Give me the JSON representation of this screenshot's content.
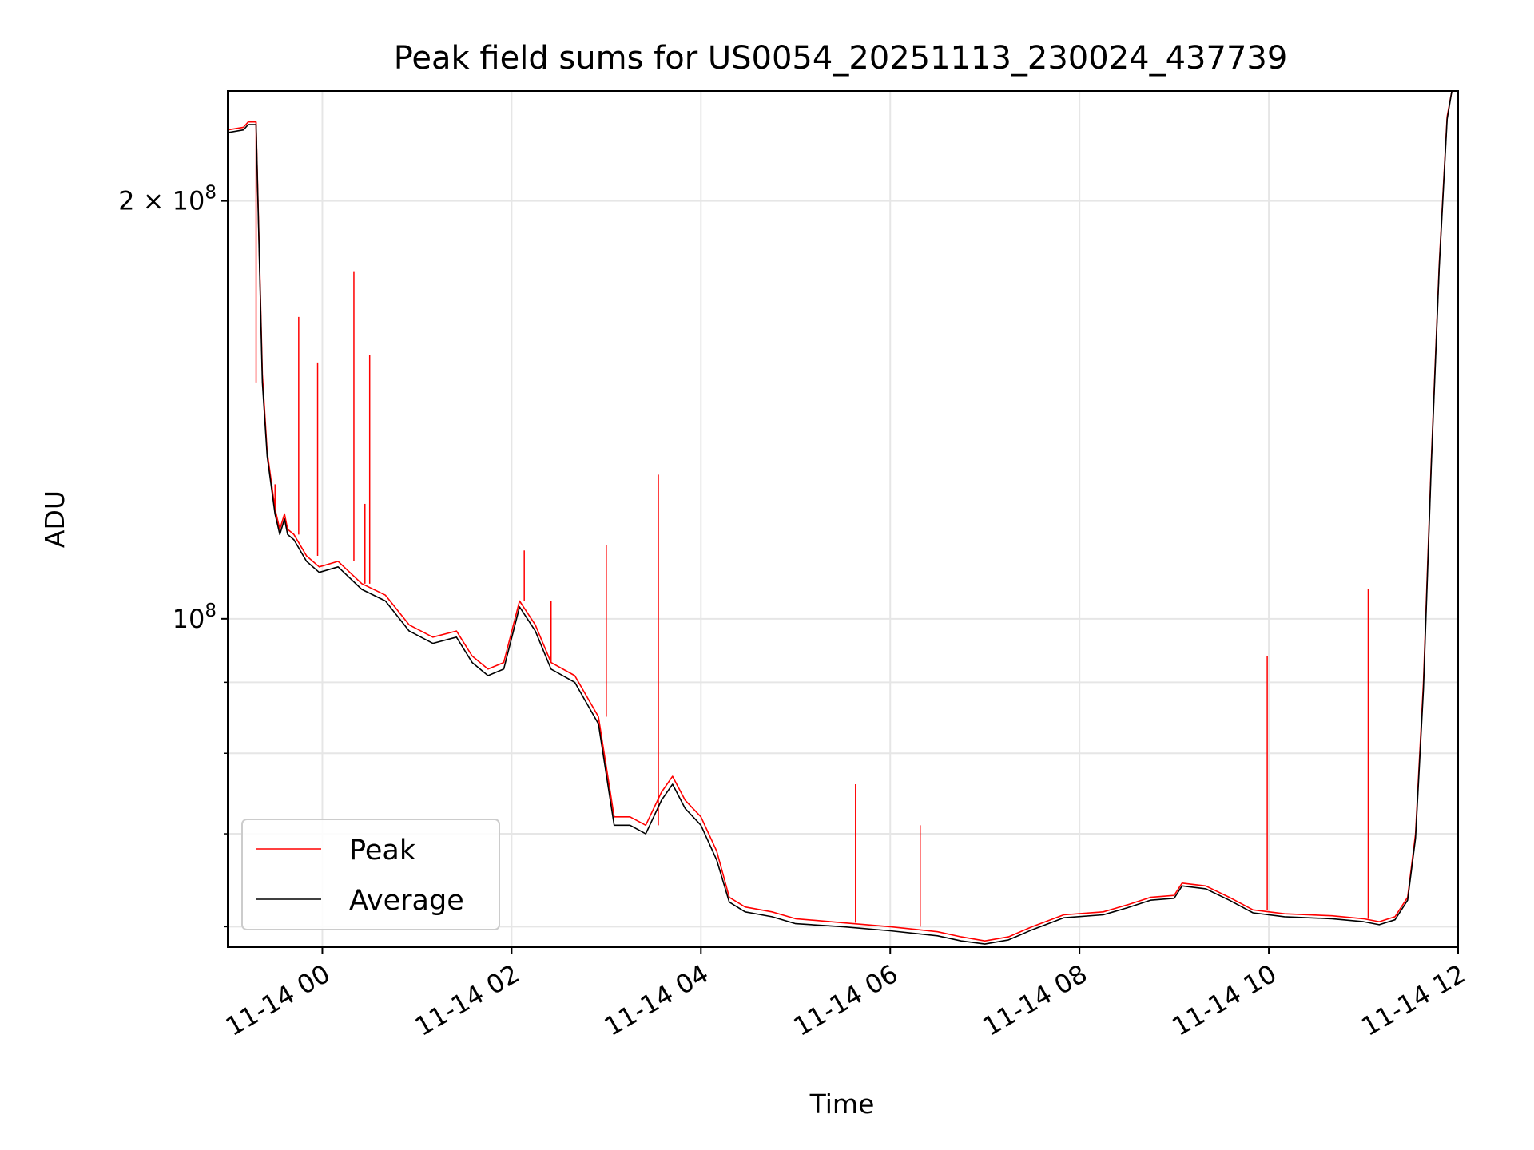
{
  "chart_data": {
    "type": "line",
    "title": "Peak field sums for US0054_20251113_230024_437739",
    "xlabel": "Time",
    "ylabel": "ADU",
    "yscale": "log",
    "xlim": [
      "2025-11-13T23:00",
      "2025-11-14T12:00"
    ],
    "ylim": [
      58000000,
      240000000
    ],
    "x_ticks": [
      {
        "value": "2025-11-14T00:00",
        "label": "11-14 00"
      },
      {
        "value": "2025-11-14T02:00",
        "label": "11-14 02"
      },
      {
        "value": "2025-11-14T04:00",
        "label": "11-14 04"
      },
      {
        "value": "2025-11-14T06:00",
        "label": "11-14 06"
      },
      {
        "value": "2025-11-14T08:00",
        "label": "11-14 08"
      },
      {
        "value": "2025-11-14T10:00",
        "label": "11-14 10"
      },
      {
        "value": "2025-11-14T12:00",
        "label": "11-14 12"
      }
    ],
    "y_ticks": [
      {
        "value": 200000000,
        "label_mantissa": "2",
        "label_base": "10",
        "label_exp": "8"
      },
      {
        "value": 100000000,
        "label_mantissa": "",
        "label_base": "10",
        "label_exp": "8"
      }
    ],
    "y_minor_ticks": [
      60000000,
      70000000,
      80000000,
      90000000
    ],
    "grid": true,
    "legend_position": "lower-left",
    "x": [
      "2025-11-13T23:00",
      "2025-11-13T23:10",
      "2025-11-13T23:13",
      "2025-11-13T23:18",
      "2025-11-13T23:22",
      "2025-11-13T23:25",
      "2025-11-13T23:30",
      "2025-11-13T23:33",
      "2025-11-13T23:36",
      "2025-11-13T23:38",
      "2025-11-13T23:42",
      "2025-11-13T23:50",
      "2025-11-13T23:58",
      "2025-11-14T00:10",
      "2025-11-14T00:25",
      "2025-11-14T00:40",
      "2025-11-14T00:55",
      "2025-11-14T01:10",
      "2025-11-14T01:25",
      "2025-11-14T01:35",
      "2025-11-14T01:45",
      "2025-11-14T01:55",
      "2025-11-14T02:05",
      "2025-11-14T02:15",
      "2025-11-14T02:25",
      "2025-11-14T02:40",
      "2025-11-14T02:55",
      "2025-11-14T03:05",
      "2025-11-14T03:15",
      "2025-11-14T03:25",
      "2025-11-14T03:35",
      "2025-11-14T03:42",
      "2025-11-14T03:50",
      "2025-11-14T04:00",
      "2025-11-14T04:10",
      "2025-11-14T04:18",
      "2025-11-14T04:28",
      "2025-11-14T04:45",
      "2025-11-14T05:00",
      "2025-11-14T05:30",
      "2025-11-14T06:00",
      "2025-11-14T06:30",
      "2025-11-14T06:45",
      "2025-11-14T07:00",
      "2025-11-14T07:15",
      "2025-11-14T07:30",
      "2025-11-14T07:50",
      "2025-11-14T08:15",
      "2025-11-14T08:30",
      "2025-11-14T08:45",
      "2025-11-14T09:00",
      "2025-11-14T09:05",
      "2025-11-14T09:20",
      "2025-11-14T09:35",
      "2025-11-14T09:50",
      "2025-11-14T10:10",
      "2025-11-14T10:40",
      "2025-11-14T11:00",
      "2025-11-14T11:10",
      "2025-11-14T11:20",
      "2025-11-14T11:28",
      "2025-11-14T11:33",
      "2025-11-14T11:38",
      "2025-11-14T11:43",
      "2025-11-14T11:48",
      "2025-11-14T11:53",
      "2025-11-14T11:56"
    ],
    "series": [
      {
        "name": "Peak",
        "color": "#ff0000",
        "values": [
          225000000,
          226000000,
          228000000,
          228000000,
          150000000,
          132000000,
          120000000,
          116000000,
          119000000,
          116000000,
          115000000,
          111000000,
          109000000,
          110000000,
          106000000,
          104000000,
          99000000,
          97000000,
          98000000,
          94000000,
          92000000,
          93000000,
          103000000,
          99000000,
          93000000,
          91000000,
          85000000,
          72000000,
          72000000,
          71000000,
          75000000,
          77000000,
          74000000,
          72000000,
          68000000,
          63000000,
          62000000,
          61500000,
          60800000,
          60400000,
          60000000,
          59500000,
          59000000,
          58600000,
          59000000,
          60000000,
          61200000,
          61500000,
          62200000,
          63000000,
          63200000,
          64500000,
          64200000,
          63000000,
          61700000,
          61300000,
          61100000,
          60800000,
          60500000,
          61000000,
          63000000,
          70000000,
          90000000,
          130000000,
          180000000,
          230000000,
          240000000
        ]
      },
      {
        "name": "Average",
        "color": "#000000",
        "values": [
          224000000,
          225000000,
          227000000,
          227000000,
          148000000,
          131000000,
          119000000,
          115000000,
          118000000,
          115000000,
          114000000,
          110000000,
          108000000,
          109000000,
          105000000,
          103000000,
          98000000,
          96000000,
          97000000,
          93000000,
          91000000,
          92000000,
          102000000,
          98000000,
          92000000,
          90000000,
          84000000,
          71000000,
          71000000,
          70000000,
          74000000,
          76000000,
          73000000,
          71000000,
          67000000,
          62500000,
          61500000,
          61000000,
          60300000,
          60000000,
          59600000,
          59100000,
          58600000,
          58300000,
          58700000,
          59700000,
          60900000,
          61200000,
          61900000,
          62700000,
          62900000,
          64200000,
          63900000,
          62700000,
          61400000,
          61000000,
          60800000,
          60500000,
          60200000,
          60700000,
          62700000,
          69500000,
          89000000,
          129000000,
          179000000,
          229000000,
          240000000
        ]
      }
    ],
    "peak_spikes": [
      {
        "x": "2025-11-13T23:18",
        "y": 148000000
      },
      {
        "x": "2025-11-13T23:30",
        "y": 125000000
      },
      {
        "x": "2025-11-13T23:45",
        "y": 165000000
      },
      {
        "x": "2025-11-13T23:57",
        "y": 153000000
      },
      {
        "x": "2025-11-14T00:20",
        "y": 178000000
      },
      {
        "x": "2025-11-14T00:27",
        "y": 121000000
      },
      {
        "x": "2025-11-14T00:30",
        "y": 155000000
      },
      {
        "x": "2025-11-14T02:08",
        "y": 112000000
      },
      {
        "x": "2025-11-14T02:25",
        "y": 103000000
      },
      {
        "x": "2025-11-14T03:00",
        "y": 113000000
      },
      {
        "x": "2025-11-14T03:33",
        "y": 127000000
      },
      {
        "x": "2025-11-14T05:38",
        "y": 76000000
      },
      {
        "x": "2025-11-14T06:19",
        "y": 71000000
      },
      {
        "x": "2025-11-14T09:59",
        "y": 94000000
      },
      {
        "x": "2025-11-14T11:03",
        "y": 105000000
      }
    ]
  }
}
